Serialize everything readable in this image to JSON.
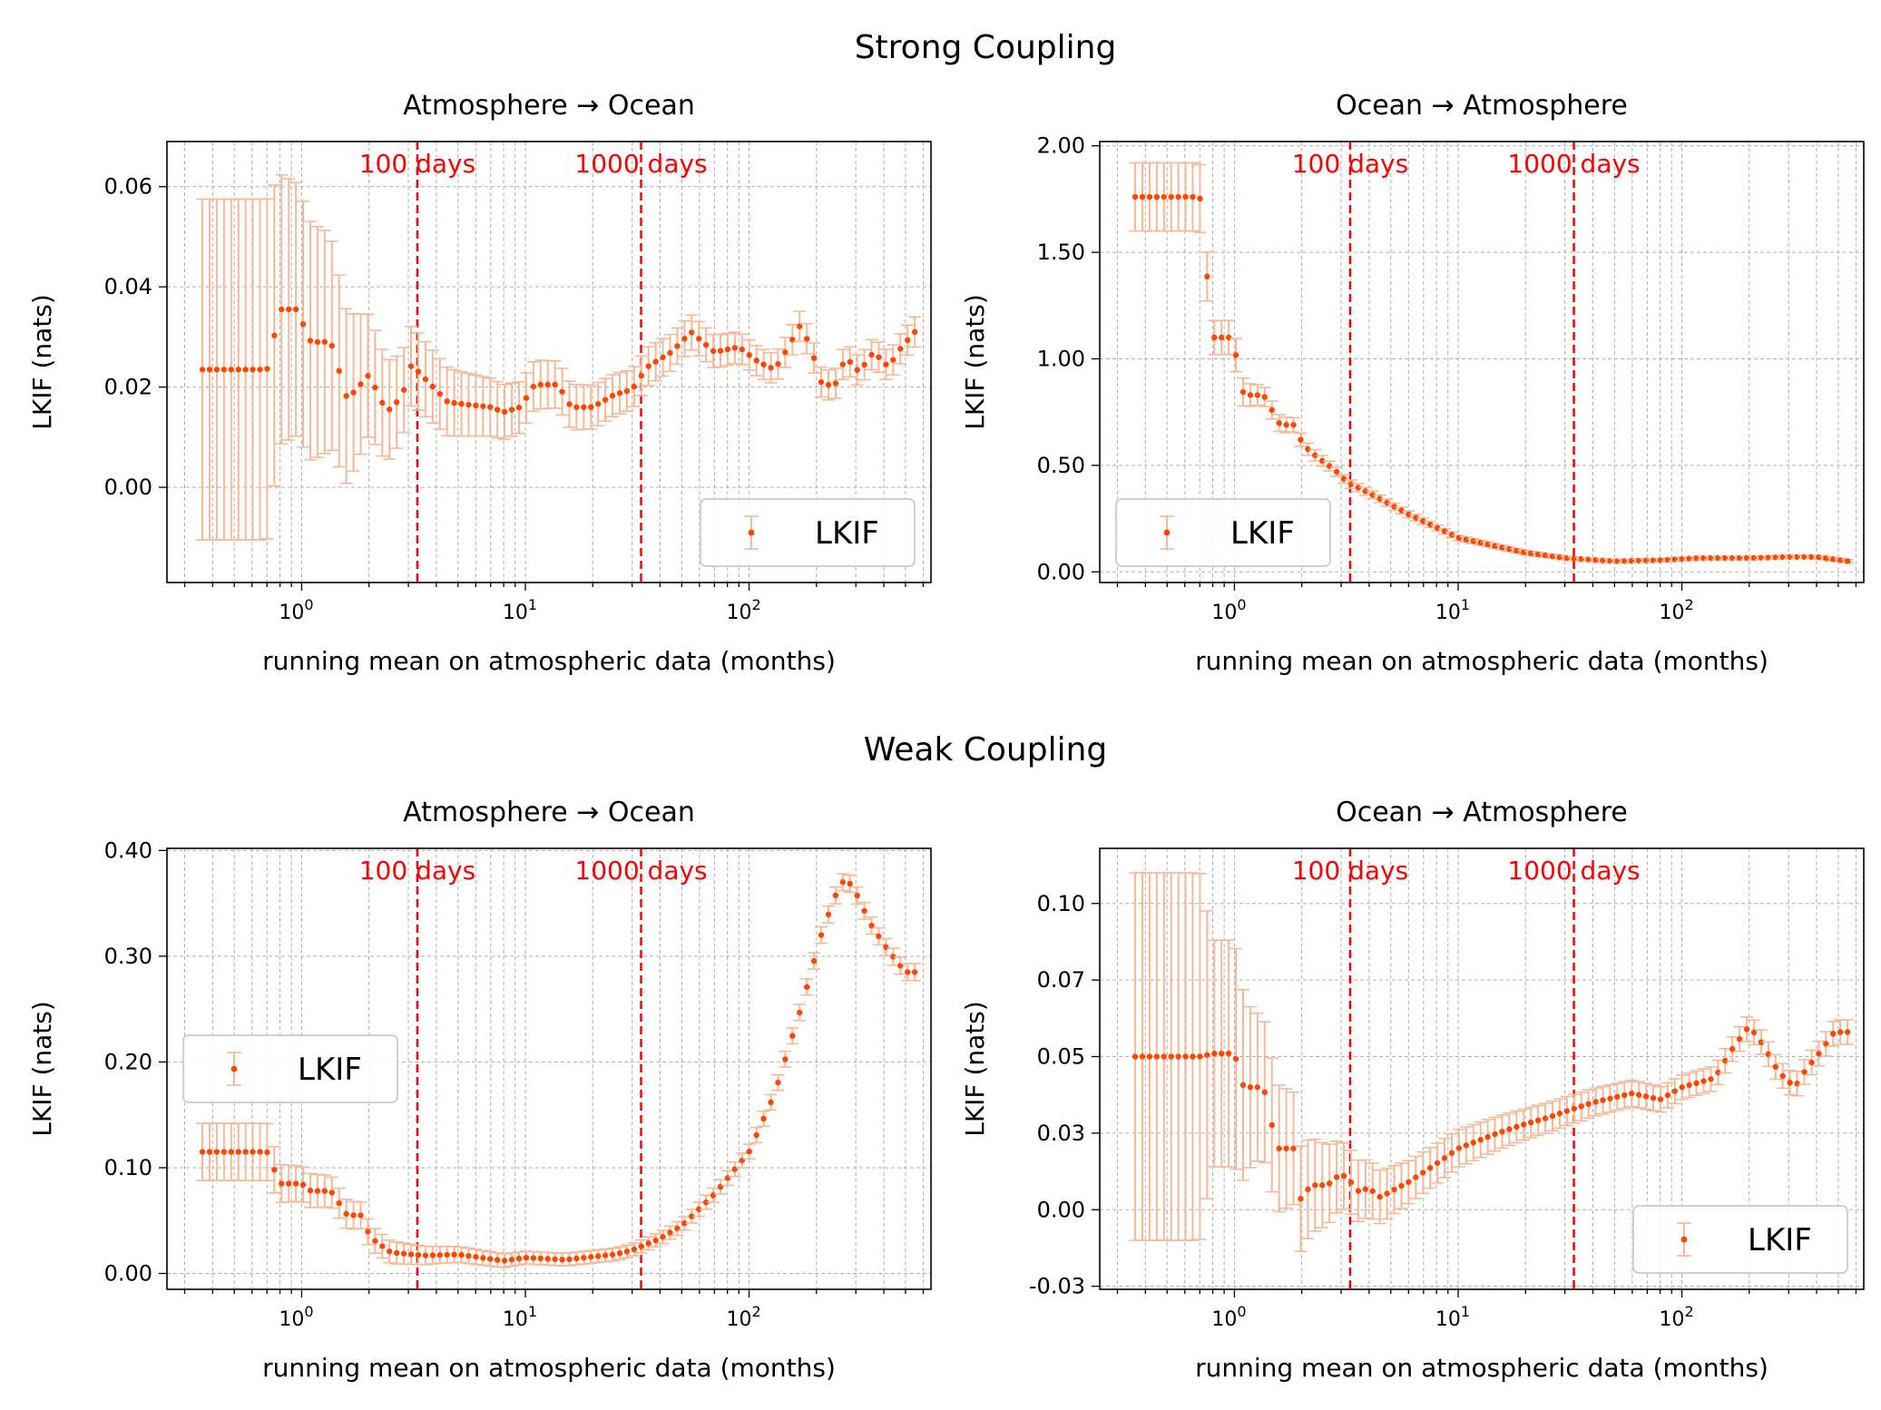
{
  "figure": {
    "section_titles": [
      "Strong Coupling",
      "Weak Coupling"
    ]
  },
  "chart_data": [
    {
      "type": "scatter",
      "panel": "strong-atm-to-ocean",
      "section": "Strong Coupling",
      "title": "Atmosphere → Ocean",
      "xlabel": "running mean on atmospheric data (months)",
      "ylabel": "LKIF (nats)",
      "xscale": "log",
      "xlim": [
        0.25,
        650
      ],
      "ylim": [
        -0.019,
        0.069
      ],
      "yticks": [
        0.0,
        0.02,
        0.04,
        0.06
      ],
      "ytick_labels": [
        "0.00",
        "0.02",
        "0.04",
        "0.06"
      ],
      "xticks": [
        1,
        10,
        100
      ],
      "xtick_labels": [
        "10^0",
        "10^1",
        "10^2"
      ],
      "grid": true,
      "legend": {
        "label": "LKIF",
        "placement": "lower-right"
      },
      "vlines": [
        {
          "x": 3.29,
          "label": "100 days"
        },
        {
          "x": 32.9,
          "label": "1000 days"
        }
      ],
      "series": [
        {
          "name": "LKIF",
          "color": "#ff4500",
          "errcolor": "#f8b896",
          "anchors": [
            [
              0.36,
              0.0235
            ],
            [
              0.7,
              0.0235
            ],
            [
              0.8,
              0.0355
            ],
            [
              0.95,
              0.0355
            ],
            [
              1.1,
              0.029
            ],
            [
              1.35,
              0.029
            ],
            [
              1.6,
              0.0175
            ],
            [
              2.0,
              0.0225
            ],
            [
              2.4,
              0.015
            ],
            [
              2.8,
              0.018
            ],
            [
              3.1,
              0.0245
            ],
            [
              3.5,
              0.022
            ],
            [
              4.5,
              0.017
            ],
            [
              5.5,
              0.0165
            ],
            [
              7,
              0.016
            ],
            [
              8,
              0.015
            ],
            [
              9.5,
              0.016
            ],
            [
              11,
              0.0205
            ],
            [
              14,
              0.0205
            ],
            [
              16,
              0.016
            ],
            [
              20,
              0.016
            ],
            [
              25,
              0.0185
            ],
            [
              30,
              0.0195
            ],
            [
              35,
              0.024
            ],
            [
              45,
              0.027
            ],
            [
              55,
              0.031
            ],
            [
              70,
              0.027
            ],
            [
              90,
              0.028
            ],
            [
              110,
              0.025
            ],
            [
              130,
              0.0235
            ],
            [
              150,
              0.028
            ],
            [
              170,
              0.0325
            ],
            [
              190,
              0.0275
            ],
            [
              210,
              0.021
            ],
            [
              240,
              0.02
            ],
            [
              270,
              0.026
            ],
            [
              310,
              0.023
            ],
            [
              360,
              0.027
            ],
            [
              420,
              0.024
            ],
            [
              480,
              0.028
            ],
            [
              550,
              0.031
            ]
          ],
          "err_anchors": [
            [
              0.36,
              0.034
            ],
            [
              0.7,
              0.034
            ],
            [
              0.8,
              0.027
            ],
            [
              1.3,
              0.022
            ],
            [
              2,
              0.012
            ],
            [
              3,
              0.008
            ],
            [
              5,
              0.0065
            ],
            [
              10,
              0.005
            ],
            [
              30,
              0.004
            ],
            [
              100,
              0.003
            ],
            [
              550,
              0.003
            ]
          ]
        }
      ]
    },
    {
      "type": "scatter",
      "panel": "strong-ocean-to-atm",
      "section": "Strong Coupling",
      "title": "Ocean → Atmosphere",
      "xlabel": "running mean on atmospheric data (months)",
      "ylabel": "LKIF (nats)",
      "xscale": "log",
      "xlim": [
        0.25,
        650
      ],
      "ylim": [
        -0.05,
        2.02
      ],
      "yticks": [
        0.0,
        0.5,
        1.0,
        1.5,
        2.0
      ],
      "ytick_labels": [
        "0.00",
        "0.50",
        "1.00",
        "1.50",
        "2.00"
      ],
      "xticks": [
        1,
        10,
        100
      ],
      "xtick_labels": [
        "10^0",
        "10^1",
        "10^2"
      ],
      "grid": true,
      "legend": {
        "label": "LKIF",
        "placement": "lower-left"
      },
      "vlines": [
        {
          "x": 3.29,
          "label": "100 days"
        },
        {
          "x": 32.9,
          "label": "1000 days"
        }
      ],
      "series": [
        {
          "name": "LKIF",
          "color": "#ff4500",
          "errcolor": "#f8b896",
          "anchors": [
            [
              0.36,
              1.76
            ],
            [
              0.7,
              1.76
            ],
            [
              0.8,
              1.1
            ],
            [
              0.98,
              1.1
            ],
            [
              1.1,
              0.83
            ],
            [
              1.35,
              0.83
            ],
            [
              1.6,
              0.69
            ],
            [
              1.9,
              0.69
            ],
            [
              2.0,
              0.6
            ],
            [
              2.4,
              0.53
            ],
            [
              2.8,
              0.48
            ],
            [
              3.2,
              0.42
            ],
            [
              4,
              0.37
            ],
            [
              6,
              0.27
            ],
            [
              10,
              0.16
            ],
            [
              20,
              0.09
            ],
            [
              30,
              0.065
            ],
            [
              50,
              0.05
            ],
            [
              80,
              0.055
            ],
            [
              120,
              0.065
            ],
            [
              200,
              0.065
            ],
            [
              300,
              0.07
            ],
            [
              400,
              0.07
            ],
            [
              550,
              0.05
            ]
          ],
          "err_anchors": [
            [
              0.36,
              0.16
            ],
            [
              0.7,
              0.16
            ],
            [
              0.8,
              0.08
            ],
            [
              1.0,
              0.08
            ],
            [
              1.2,
              0.05
            ],
            [
              2,
              0.03
            ],
            [
              3,
              0.02
            ],
            [
              10,
              0.012
            ],
            [
              30,
              0.008
            ],
            [
              550,
              0.008
            ]
          ]
        }
      ]
    },
    {
      "type": "scatter",
      "panel": "weak-atm-to-ocean",
      "section": "Weak Coupling",
      "title": "Atmosphere → Ocean",
      "xlabel": "running mean on atmospheric data (months)",
      "ylabel": "LKIF (nats)",
      "xscale": "log",
      "xlim": [
        0.25,
        650
      ],
      "ylim": [
        -0.015,
        0.402
      ],
      "yticks": [
        0.0,
        0.1,
        0.2,
        0.3,
        0.4
      ],
      "ytick_labels": [
        "0.00",
        "0.10",
        "0.20",
        "0.30",
        "0.40"
      ],
      "xticks": [
        1,
        10,
        100
      ],
      "xtick_labels": [
        "10^0",
        "10^1",
        "10^2"
      ],
      "grid": true,
      "legend": {
        "label": "LKIF",
        "placement": "center-left"
      },
      "vlines": [
        {
          "x": 3.29,
          "label": "100 days"
        },
        {
          "x": 32.9,
          "label": "1000 days"
        }
      ],
      "series": [
        {
          "name": "LKIF",
          "color": "#ff4500",
          "errcolor": "#f8b896",
          "anchors": [
            [
              0.36,
              0.115
            ],
            [
              0.7,
              0.115
            ],
            [
              0.8,
              0.085
            ],
            [
              1.0,
              0.085
            ],
            [
              1.1,
              0.078
            ],
            [
              1.35,
              0.078
            ],
            [
              1.6,
              0.055
            ],
            [
              1.9,
              0.055
            ],
            [
              2.0,
              0.035
            ],
            [
              2.5,
              0.02
            ],
            [
              3.5,
              0.017
            ],
            [
              5,
              0.018
            ],
            [
              8,
              0.012
            ],
            [
              10,
              0.015
            ],
            [
              15,
              0.013
            ],
            [
              25,
              0.018
            ],
            [
              30,
              0.022
            ],
            [
              40,
              0.033
            ],
            [
              50,
              0.045
            ],
            [
              70,
              0.075
            ],
            [
              100,
              0.115
            ],
            [
              130,
              0.17
            ],
            [
              170,
              0.25
            ],
            [
              210,
              0.32
            ],
            [
              240,
              0.355
            ],
            [
              270,
              0.375
            ],
            [
              300,
              0.36
            ],
            [
              350,
              0.33
            ],
            [
              420,
              0.305
            ],
            [
              500,
              0.285
            ]
          ],
          "err_anchors": [
            [
              0.36,
              0.027
            ],
            [
              0.7,
              0.027
            ],
            [
              0.8,
              0.018
            ],
            [
              1.3,
              0.015
            ],
            [
              2,
              0.012
            ],
            [
              4,
              0.008
            ],
            [
              10,
              0.006
            ],
            [
              30,
              0.006
            ],
            [
              100,
              0.007
            ],
            [
              250,
              0.008
            ],
            [
              500,
              0.008
            ]
          ]
        }
      ]
    },
    {
      "type": "scatter",
      "panel": "weak-ocean-to-atm",
      "section": "Weak Coupling",
      "title": "Ocean → Atmosphere",
      "xlabel": "running mean on atmospheric data (months)",
      "ylabel": "LKIF (nats)",
      "xscale": "log",
      "xlim": [
        0.25,
        650
      ],
      "ylim": [
        -0.026,
        0.118
      ],
      "yticks": [
        -0.025,
        0.0,
        0.025,
        0.05,
        0.075,
        0.1
      ],
      "ytick_labels": [
        "-0.03",
        "0.00",
        "0.03",
        "0.05",
        "0.07",
        "0.10"
      ],
      "xticks": [
        1,
        10,
        100
      ],
      "xtick_labels": [
        "10^0",
        "10^1",
        "10^2"
      ],
      "grid": true,
      "legend": {
        "label": "LKIF",
        "placement": "lower-right"
      },
      "vlines": [
        {
          "x": 3.29,
          "label": "100 days"
        },
        {
          "x": 32.9,
          "label": "1000 days"
        }
      ],
      "series": [
        {
          "name": "LKIF",
          "color": "#ff4500",
          "errcolor": "#f8b896",
          "anchors": [
            [
              0.36,
              0.05
            ],
            [
              0.7,
              0.05
            ],
            [
              0.8,
              0.051
            ],
            [
              1.0,
              0.051
            ],
            [
              1.1,
              0.04
            ],
            [
              1.35,
              0.04
            ],
            [
              1.55,
              0.02
            ],
            [
              1.85,
              0.02
            ],
            [
              1.95,
              0.003
            ],
            [
              2.2,
              0.008
            ],
            [
              2.6,
              0.008
            ],
            [
              2.9,
              0.011
            ],
            [
              3.2,
              0.011
            ],
            [
              3.5,
              0.006
            ],
            [
              4,
              0.007
            ],
            [
              4.5,
              0.004
            ],
            [
              5,
              0.006
            ],
            [
              6,
              0.009
            ],
            [
              8,
              0.015
            ],
            [
              10,
              0.02
            ],
            [
              15,
              0.025
            ],
            [
              20,
              0.028
            ],
            [
              25,
              0.03
            ],
            [
              30,
              0.032
            ],
            [
              40,
              0.035
            ],
            [
              60,
              0.038
            ],
            [
              80,
              0.036
            ],
            [
              100,
              0.04
            ],
            [
              140,
              0.043
            ],
            [
              170,
              0.053
            ],
            [
              200,
              0.06
            ],
            [
              230,
              0.054
            ],
            [
              270,
              0.045
            ],
            [
              320,
              0.04
            ],
            [
              360,
              0.046
            ],
            [
              420,
              0.052
            ],
            [
              480,
              0.058
            ]
          ],
          "err_anchors": [
            [
              0.36,
              0.06
            ],
            [
              0.7,
              0.06
            ],
            [
              0.8,
              0.037
            ],
            [
              1.0,
              0.037
            ],
            [
              1.2,
              0.025
            ],
            [
              2,
              0.017
            ],
            [
              3,
              0.011
            ],
            [
              6,
              0.007
            ],
            [
              20,
              0.005
            ],
            [
              100,
              0.004
            ],
            [
              480,
              0.004
            ]
          ]
        }
      ]
    }
  ]
}
